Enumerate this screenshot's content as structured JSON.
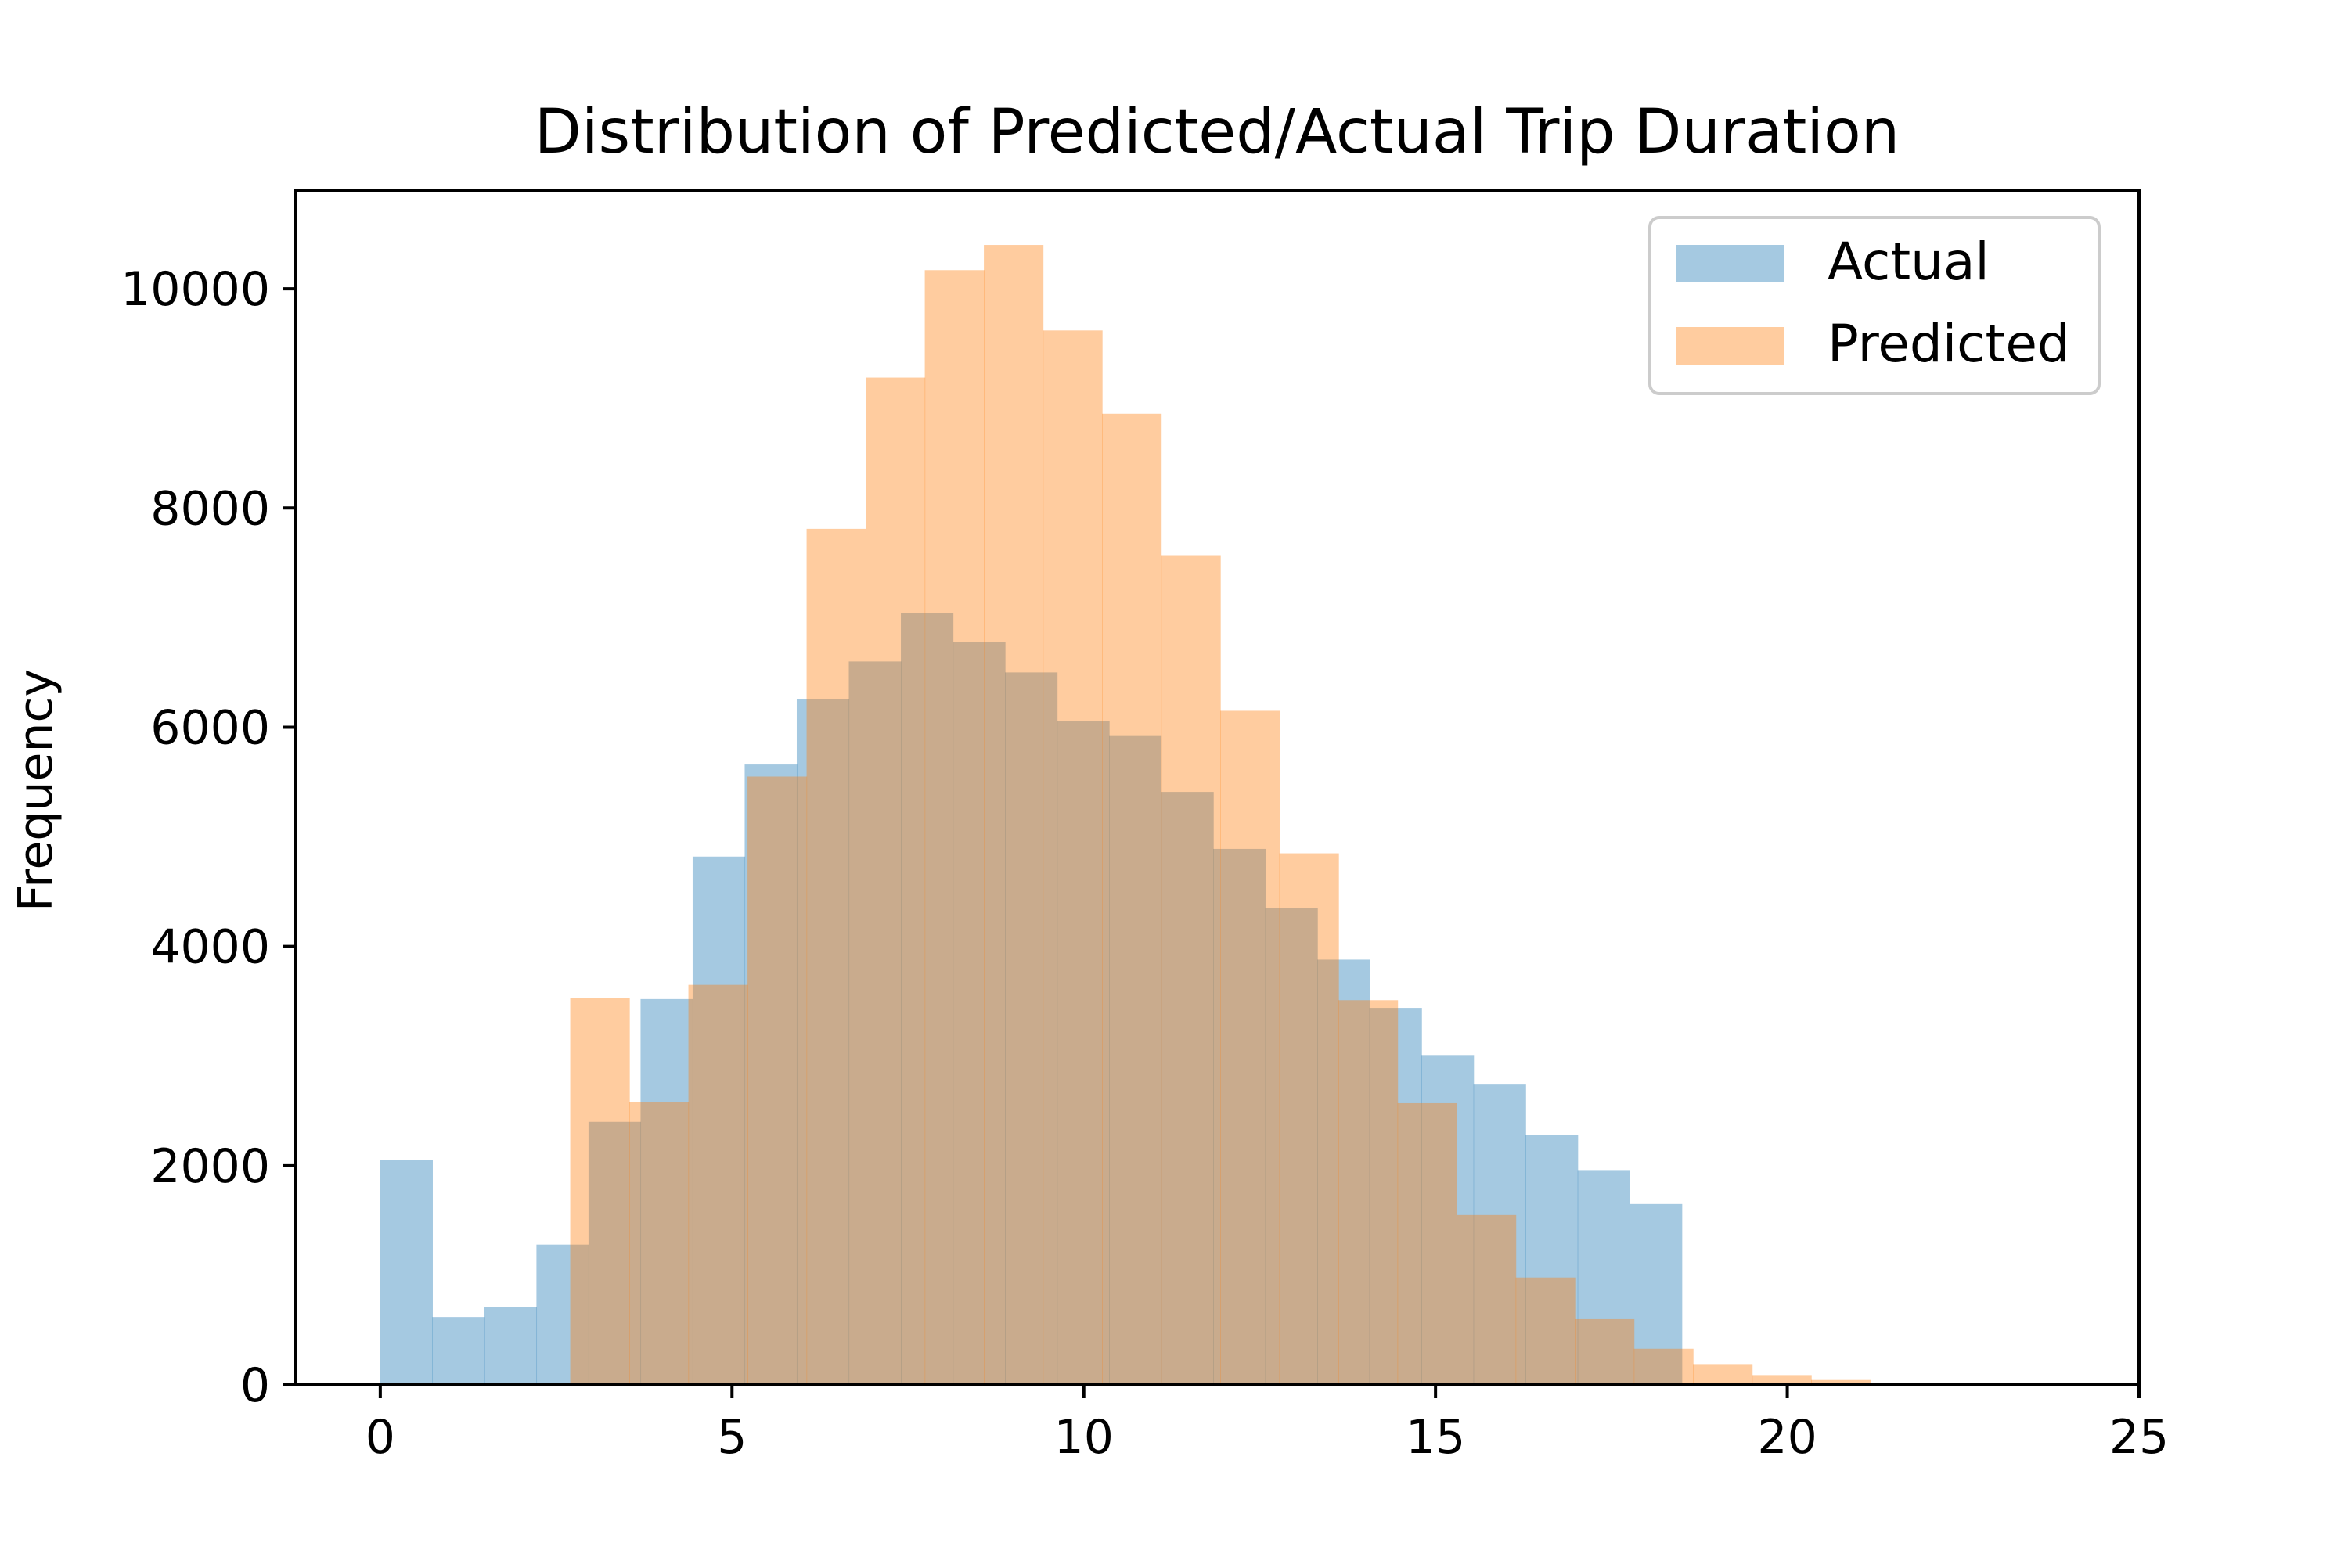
{
  "chart_data": {
    "type": "bar",
    "subtype": "overlapping-histogram",
    "title": "Distribution of Predicted/Actual Trip Duration",
    "xlabel": "",
    "ylabel": "Frequency",
    "xlim": [
      -1.2,
      25
    ],
    "ylim": [
      0,
      10900
    ],
    "xticks": [
      0,
      5,
      10,
      15,
      20,
      25
    ],
    "yticks": [
      0,
      2000,
      4000,
      6000,
      8000,
      10000
    ],
    "grid": false,
    "legend_position": "top-right",
    "series": [
      {
        "name": "Actual",
        "color": "#1f77b4",
        "opacity": 0.4,
        "bin_edges": [
          0,
          0.74,
          1.48,
          2.22,
          2.96,
          3.7,
          4.44,
          5.18,
          5.92,
          6.66,
          7.4,
          8.14,
          8.88,
          9.62,
          10.36,
          11.1,
          11.84,
          12.58,
          13.32,
          14.06,
          14.8,
          15.54,
          16.28,
          17.02,
          17.76,
          18.5
        ],
        "values": [
          2050,
          620,
          710,
          1280,
          2400,
          3520,
          4820,
          5660,
          6260,
          6600,
          7040,
          6780,
          6500,
          6060,
          5920,
          5410,
          4890,
          4350,
          3880,
          3440,
          3010,
          2740,
          2280,
          1960,
          1650
        ]
      },
      {
        "name": "Predicted",
        "color": "#ff7f0e",
        "opacity": 0.4,
        "bin_edges": [
          2.7,
          3.54,
          4.38,
          5.22,
          6.06,
          6.9,
          7.74,
          8.58,
          9.42,
          10.26,
          11.1,
          11.94,
          12.78,
          13.62,
          14.46,
          15.3,
          16.14,
          16.98,
          17.82,
          18.66,
          19.5,
          20.34,
          21.18,
          22.02
        ],
        "values": [
          3530,
          2580,
          3650,
          5550,
          7810,
          9190,
          10170,
          10400,
          9620,
          8860,
          7570,
          6150,
          4850,
          3510,
          2570,
          1550,
          980,
          600,
          330,
          190,
          90,
          45,
          15
        ]
      }
    ]
  }
}
